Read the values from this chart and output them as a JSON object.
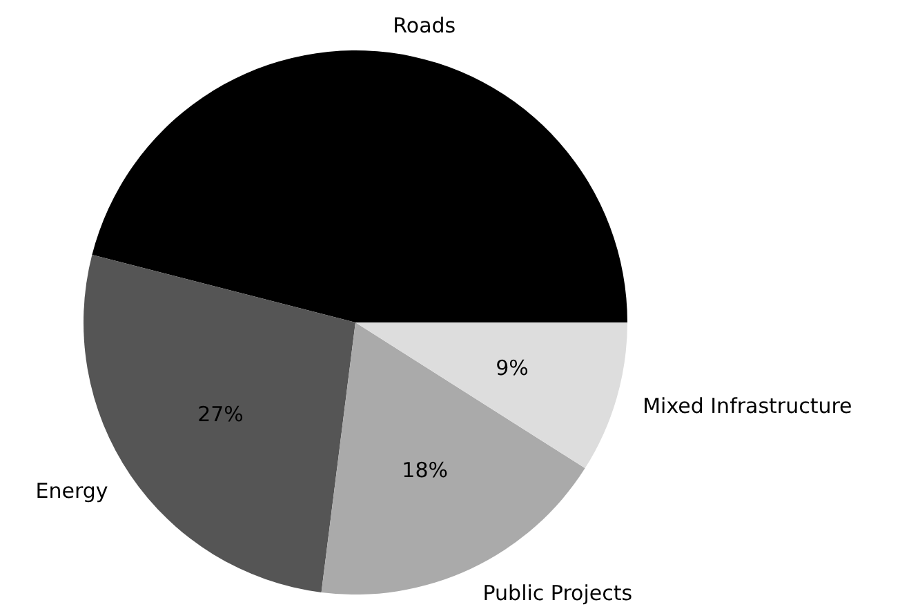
{
  "chart_data": {
    "type": "pie",
    "categories": [
      "Roads",
      "Energy",
      "Public Projects",
      "Mixed Infrastructure"
    ],
    "values": [
      46,
      27,
      18,
      9
    ],
    "colors": [
      "#000000",
      "#555555",
      "#aaaaaa",
      "#dddddd"
    ],
    "value_labels": [
      null,
      "27%",
      "18%",
      "9%"
    ]
  }
}
